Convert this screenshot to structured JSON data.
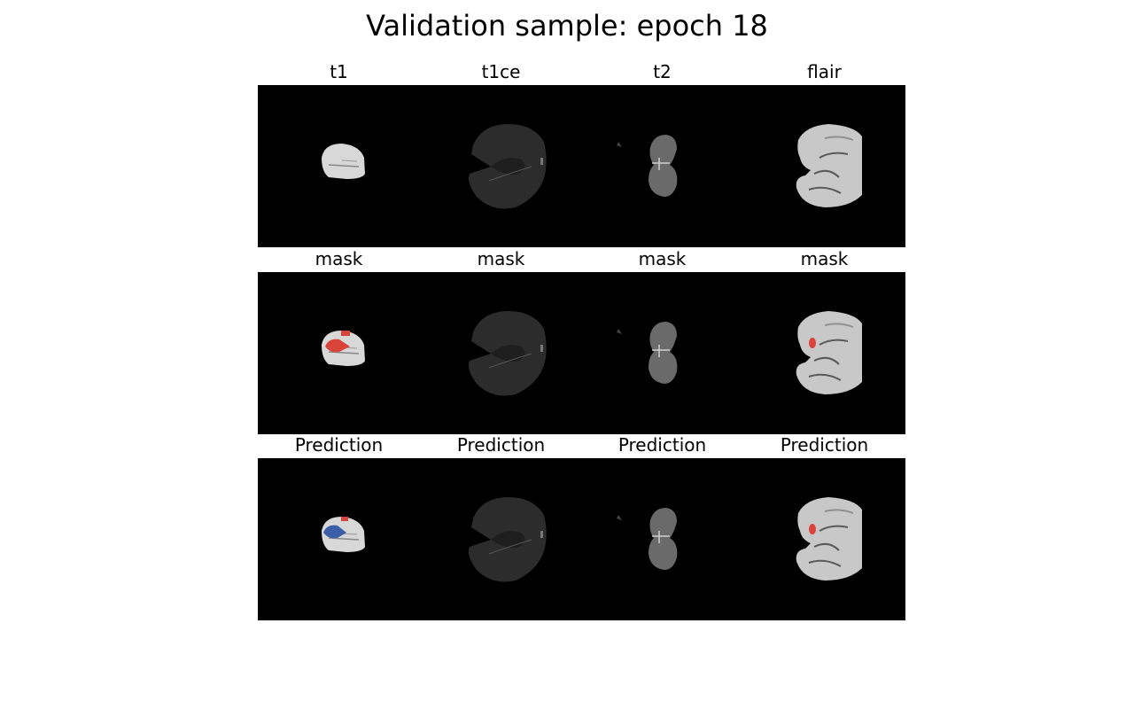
{
  "figure": {
    "title": "Validation sample: epoch 18"
  },
  "rows": [
    {
      "row": "input",
      "panels": [
        {
          "title": "t1",
          "brain": "small-bright",
          "overlay": "none"
        },
        {
          "title": "t1ce",
          "brain": "large-dark",
          "overlay": "none"
        },
        {
          "title": "t2",
          "brain": "narrow-gray",
          "overlay": "none"
        },
        {
          "title": "flair",
          "brain": "large-bright",
          "overlay": "none"
        }
      ]
    },
    {
      "row": "mask",
      "panels": [
        {
          "title": "mask",
          "brain": "small-bright",
          "overlay": "red-large"
        },
        {
          "title": "mask",
          "brain": "large-dark",
          "overlay": "none"
        },
        {
          "title": "mask",
          "brain": "narrow-gray",
          "overlay": "none"
        },
        {
          "title": "mask",
          "brain": "large-bright",
          "overlay": "red-small"
        }
      ]
    },
    {
      "row": "prediction",
      "panels": [
        {
          "title": "Prediction",
          "brain": "small-bright",
          "overlay": "blue-red"
        },
        {
          "title": "Prediction",
          "brain": "large-dark",
          "overlay": "none"
        },
        {
          "title": "Prediction",
          "brain": "narrow-gray",
          "overlay": "none"
        },
        {
          "title": "Prediction",
          "brain": "large-bright",
          "overlay": "red-small"
        }
      ]
    }
  ],
  "colors": {
    "background": "#000000",
    "mask_red": "#d9433a",
    "prediction_blue": "#3a5fa8"
  }
}
